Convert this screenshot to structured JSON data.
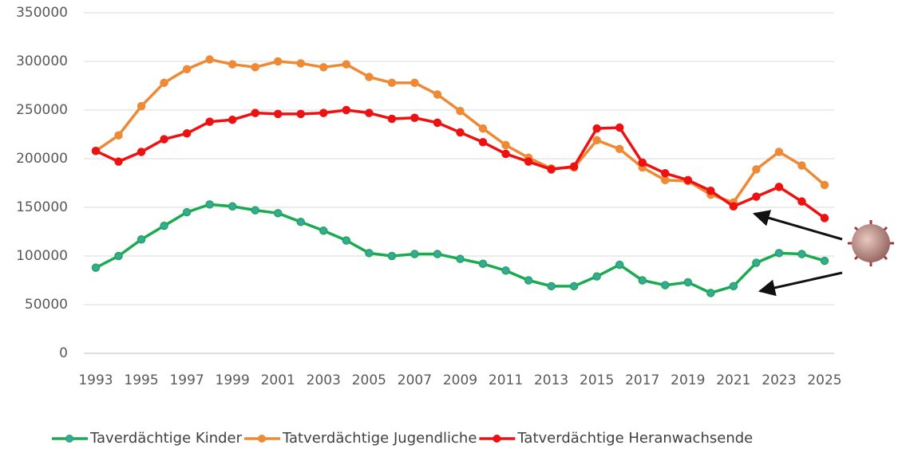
{
  "chart_data": {
    "type": "line",
    "x": [
      1993,
      1994,
      1995,
      1996,
      1997,
      1998,
      1999,
      2000,
      2001,
      2002,
      2003,
      2004,
      2005,
      2006,
      2007,
      2008,
      2009,
      2010,
      2011,
      2012,
      2013,
      2014,
      2015,
      2016,
      2017,
      2018,
      2019,
      2020,
      2021,
      2022,
      2023,
      2024,
      2025
    ],
    "xlim": [
      1993,
      2025
    ],
    "xticks": [
      1993,
      1995,
      1997,
      1999,
      2001,
      2003,
      2005,
      2007,
      2009,
      2011,
      2013,
      2015,
      2017,
      2019,
      2021,
      2023,
      2025
    ],
    "ylim": [
      0,
      350000
    ],
    "yticks": [
      0,
      50000,
      100000,
      150000,
      200000,
      250000,
      300000,
      350000
    ],
    "grid": true,
    "legend": "bottom",
    "series": [
      {
        "name": "Taverdächtige Kinder",
        "color": "#1aab50",
        "values": [
          88000,
          100000,
          117000,
          131000,
          145000,
          153000,
          151000,
          147000,
          144000,
          135000,
          126000,
          116000,
          103000,
          100000,
          102000,
          102000,
          97000,
          92000,
          85000,
          75000,
          69000,
          69000,
          79000,
          91000,
          75000,
          70000,
          73000,
          62000,
          69000,
          93000,
          103000,
          102000,
          95000
        ]
      },
      {
        "name": "Tatverdächtige Jugendliche",
        "color": "#ee8a35",
        "values": [
          208000,
          224000,
          254000,
          278000,
          292000,
          302000,
          297000,
          294000,
          300000,
          298000,
          294000,
          297000,
          284000,
          278000,
          278000,
          266000,
          249000,
          231000,
          214000,
          201000,
          190000,
          191000,
          219000,
          210000,
          191000,
          178000,
          177000,
          163000,
          155000,
          189000,
          207000,
          193000,
          173000
        ]
      },
      {
        "name": "Tatverdächtige Heranwachsende",
        "color": "#ee1111",
        "values": [
          208000,
          197000,
          207000,
          220000,
          226000,
          238000,
          240000,
          247000,
          246000,
          246000,
          247000,
          250000,
          247000,
          241000,
          242000,
          237000,
          227000,
          217000,
          205000,
          197000,
          189000,
          192000,
          231000,
          232000,
          196000,
          185000,
          178000,
          167000,
          151000,
          161000,
          171000,
          156000,
          139000
        ]
      }
    ]
  }
}
